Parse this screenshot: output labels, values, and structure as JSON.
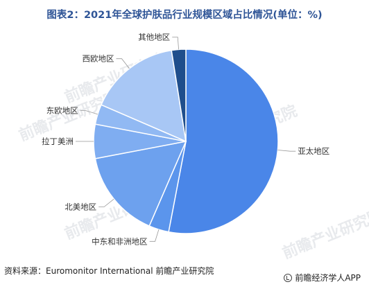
{
  "title": "图表2：2021年全球护肤品行业规模区域占比情况(单位：%)",
  "watermark": "前瞻产业研究院",
  "source": "资料来源：Euromonitor International 前瞻产业研究院",
  "brand": "前瞻经济学人APP",
  "chart_data": {
    "type": "pie",
    "title": "图表2：2021年全球护肤品行业规模区域占比情况(单位：%)",
    "unit": "%",
    "slices": [
      {
        "label": "亚太地区",
        "value": 53.0,
        "color": "#4a86e8"
      },
      {
        "label": "中东和非洲地区",
        "value": 3.5,
        "color": "#5b95ec"
      },
      {
        "label": "北美地区",
        "value": 15.5,
        "color": "#6da1ee"
      },
      {
        "label": "拉丁美洲",
        "value": 6.0,
        "color": "#7fadf1"
      },
      {
        "label": "东欧地区",
        "value": 3.5,
        "color": "#91b9f3"
      },
      {
        "label": "西欧地区",
        "value": 16.0,
        "color": "#a8c7f5"
      },
      {
        "label": "其他地区",
        "value": 2.5,
        "color": "#1f4e8c"
      }
    ]
  }
}
